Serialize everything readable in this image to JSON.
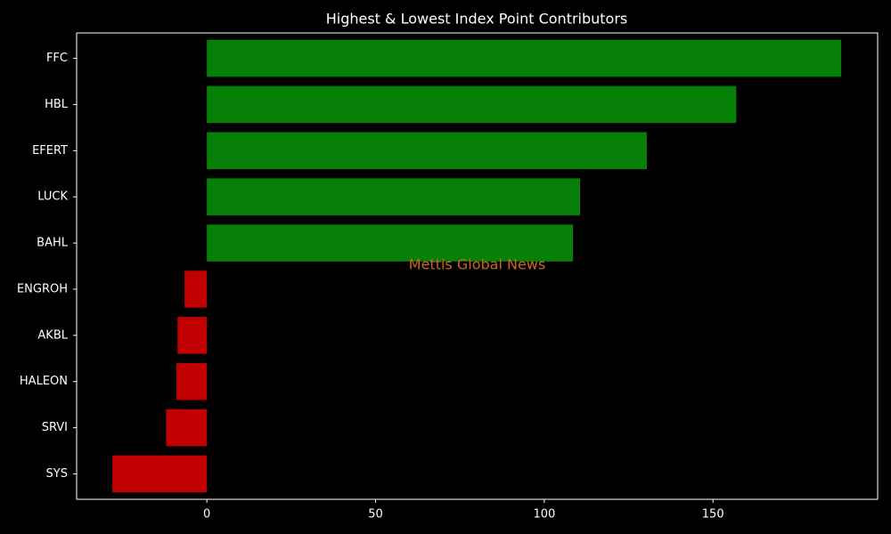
{
  "chart_data": {
    "type": "barh",
    "title": "Highest & Lowest Index Point Contributors",
    "watermark": "Mettis Global News",
    "watermark_color": "#c8661e",
    "categories": [
      "FFC",
      "HBL",
      "EFERT",
      "LUCK",
      "BAHL",
      "ENGROH",
      "AKBL",
      "HALEON",
      "SRVI",
      "SYS"
    ],
    "values": [
      188.0,
      156.9,
      130.4,
      110.6,
      108.5,
      -6.6,
      -8.7,
      -9.0,
      -12.1,
      -28.0
    ],
    "colors": [
      "#078007",
      "#078007",
      "#078007",
      "#078007",
      "#078007",
      "#c00000",
      "#c00000",
      "#c00000",
      "#c00000",
      "#c00000"
    ],
    "xlim": [
      -38.6,
      198.8
    ],
    "xticks": [
      0,
      50,
      100,
      150
    ],
    "grid": false
  }
}
